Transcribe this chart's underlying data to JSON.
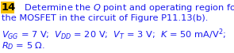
{
  "number": "14",
  "line1": "   Determine the $Q$ point and operating region for",
  "line2": "the MOSFET in the circuit of Figure P11.13(b).",
  "line3": "$V_{GG}$ = 7 V;  $V_{DD}$ = 20 V;  $V_T$ = 3 V;  $K$ = 50 mA/V$^2$;",
  "line4": "$R_D$ = 5 Ω.",
  "bg_color": "#ffffff",
  "number_color": "#000000",
  "number_bg": "#f5c518",
  "body_color": "#1a1aee",
  "fontsize_number": 9.5,
  "fontsize_body": 8.2,
  "fig_width": 2.95,
  "fig_height": 0.67,
  "dpi": 100
}
